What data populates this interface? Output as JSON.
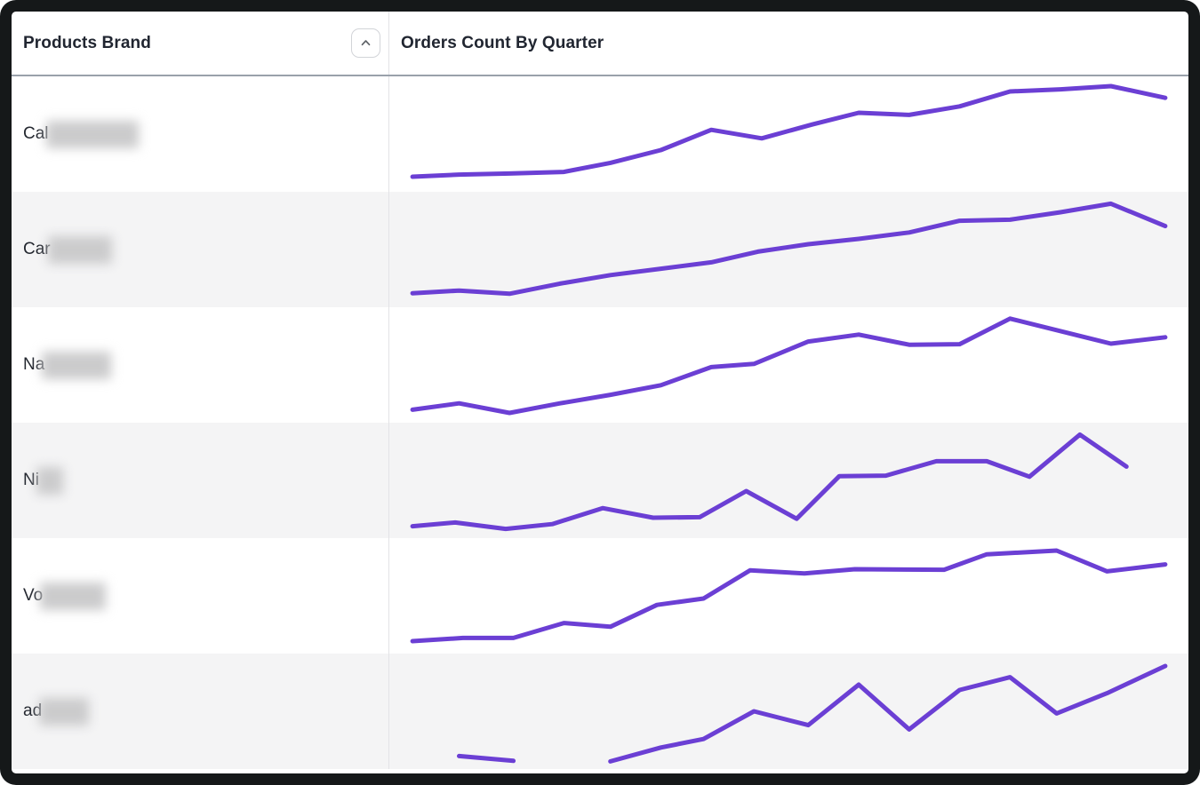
{
  "table": {
    "columns": [
      {
        "label": "Products Brand",
        "sortable": true,
        "sort_icon": "chevron-up-icon",
        "sort_direction": "asc"
      },
      {
        "label": "Orders Count By Quarter"
      }
    ],
    "rows": [
      {
        "brand_prefix": "Cal",
        "brand_redacted": true,
        "redacted_width": 104
      },
      {
        "brand_prefix": "Car",
        "brand_redacted": true,
        "redacted_width": 72
      },
      {
        "brand_prefix": "Na",
        "brand_redacted": true,
        "redacted_width": 78
      },
      {
        "brand_prefix": "Ni",
        "brand_redacted": true,
        "redacted_width": 30
      },
      {
        "brand_prefix": "Vo",
        "brand_redacted": true,
        "redacted_width": 74
      },
      {
        "brand_prefix": "ad",
        "brand_redacted": true,
        "redacted_width": 56
      }
    ]
  },
  "chart_data": {
    "type": "line",
    "title": "Orders Count By Quarter",
    "xlabel": "quarters (tick labels not shown)",
    "ylabel": "orders count (axis not shown)",
    "values_normalized": true,
    "note": "sparklines without axes; values estimated as fraction of row height (0=bottom,1=top); x as fraction of chart width",
    "line_color": "#6B3FD4",
    "series": [
      {
        "name": "Cal",
        "segments": [
          [
            [
              0.015,
              0.1
            ],
            [
              0.075,
              0.12
            ],
            [
              0.14,
              0.13
            ],
            [
              0.21,
              0.145
            ],
            [
              0.27,
              0.23
            ],
            [
              0.335,
              0.35
            ],
            [
              0.4,
              0.54
            ],
            [
              0.465,
              0.46
            ],
            [
              0.53,
              0.59
            ],
            [
              0.59,
              0.7
            ],
            [
              0.655,
              0.68
            ],
            [
              0.72,
              0.76
            ],
            [
              0.785,
              0.9
            ],
            [
              0.85,
              0.92
            ],
            [
              0.915,
              0.95
            ],
            [
              0.985,
              0.84
            ]
          ]
        ]
      },
      {
        "name": "Car",
        "segments": [
          [
            [
              0.015,
              0.09
            ],
            [
              0.075,
              0.115
            ],
            [
              0.14,
              0.085
            ],
            [
              0.205,
              0.18
            ],
            [
              0.27,
              0.26
            ],
            [
              0.335,
              0.32
            ],
            [
              0.4,
              0.38
            ],
            [
              0.46,
              0.48
            ],
            [
              0.525,
              0.55
            ],
            [
              0.59,
              0.6
            ],
            [
              0.655,
              0.66
            ],
            [
              0.72,
              0.77
            ],
            [
              0.785,
              0.78
            ],
            [
              0.85,
              0.85
            ],
            [
              0.915,
              0.93
            ],
            [
              0.985,
              0.72
            ]
          ]
        ]
      },
      {
        "name": "Na",
        "segments": [
          [
            [
              0.015,
              0.08
            ],
            [
              0.075,
              0.14
            ],
            [
              0.14,
              0.05
            ],
            [
              0.205,
              0.14
            ],
            [
              0.27,
              0.22
            ],
            [
              0.335,
              0.31
            ],
            [
              0.4,
              0.48
            ],
            [
              0.455,
              0.51
            ],
            [
              0.525,
              0.72
            ],
            [
              0.59,
              0.785
            ],
            [
              0.655,
              0.69
            ],
            [
              0.72,
              0.695
            ],
            [
              0.785,
              0.935
            ],
            [
              0.915,
              0.7
            ],
            [
              0.985,
              0.76
            ]
          ]
        ]
      },
      {
        "name": "Ni",
        "segments": [
          [
            [
              0.015,
              0.07
            ],
            [
              0.07,
              0.105
            ],
            [
              0.135,
              0.045
            ],
            [
              0.195,
              0.09
            ],
            [
              0.26,
              0.24
            ],
            [
              0.325,
              0.15
            ],
            [
              0.385,
              0.155
            ],
            [
              0.445,
              0.4
            ],
            [
              0.51,
              0.14
            ],
            [
              0.565,
              0.54
            ],
            [
              0.625,
              0.545
            ],
            [
              0.69,
              0.68
            ],
            [
              0.755,
              0.68
            ],
            [
              0.81,
              0.535
            ],
            [
              0.875,
              0.93
            ],
            [
              0.935,
              0.63
            ]
          ]
        ]
      },
      {
        "name": "Vo",
        "segments": [
          [
            [
              0.015,
              0.075
            ],
            [
              0.08,
              0.105
            ],
            [
              0.145,
              0.105
            ],
            [
              0.21,
              0.245
            ],
            [
              0.27,
              0.21
            ],
            [
              0.33,
              0.415
            ],
            [
              0.39,
              0.475
            ],
            [
              0.45,
              0.74
            ],
            [
              0.52,
              0.71
            ],
            [
              0.585,
              0.75
            ],
            [
              0.7,
              0.745
            ],
            [
              0.755,
              0.89
            ],
            [
              0.845,
              0.925
            ],
            [
              0.91,
              0.73
            ],
            [
              0.985,
              0.795
            ]
          ]
        ]
      },
      {
        "name": "ad",
        "segments": [
          [
            [
              0.075,
              0.08
            ],
            [
              0.145,
              0.035
            ]
          ],
          [
            [
              0.27,
              0.03
            ],
            [
              0.335,
              0.16
            ],
            [
              0.39,
              0.24
            ],
            [
              0.455,
              0.5
            ],
            [
              0.525,
              0.37
            ],
            [
              0.59,
              0.75
            ],
            [
              0.655,
              0.33
            ],
            [
              0.72,
              0.7
            ],
            [
              0.785,
              0.82
            ],
            [
              0.845,
              0.48
            ],
            [
              0.91,
              0.67
            ],
            [
              0.985,
              0.925
            ]
          ]
        ]
      }
    ]
  },
  "colors": {
    "line": "#6B3FD4",
    "row_alt_bg": "#F4F4F5",
    "header_border": "#99A1AA",
    "divider": "#E3E3E6",
    "frame": "#151819",
    "text": "#212631"
  }
}
